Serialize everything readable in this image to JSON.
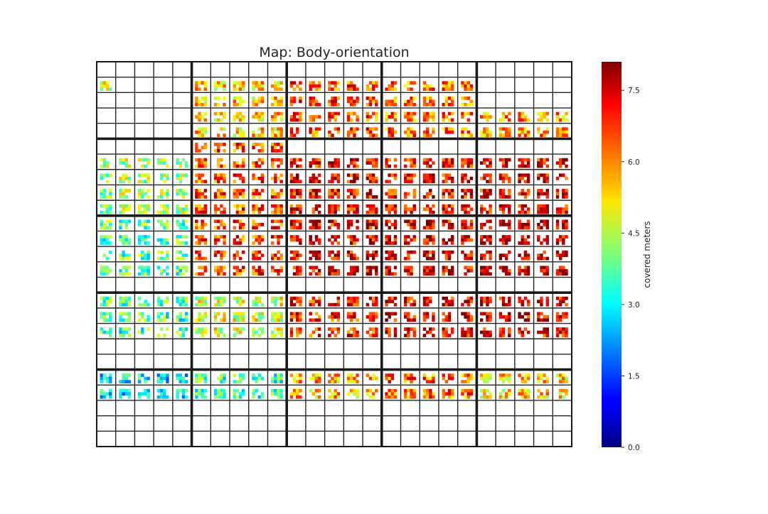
{
  "chart_data": {
    "type": "heatmap",
    "title": "Map: Body-orientation",
    "colorbar": {
      "label": "covered meters",
      "vmin": 0,
      "vmax": 8.1,
      "ticks": [
        0.0,
        1.5,
        3.0,
        4.5,
        6.0,
        7.5
      ],
      "tick_labels": [
        "0.0",
        "1.5",
        "3.0",
        "4.5",
        "6.0",
        "7.5"
      ],
      "colormap": "jet"
    },
    "grid": {
      "blocks_x": 5,
      "blocks_y": 5,
      "sub_x": 5,
      "sub_y": 5,
      "pixel_cols": 4,
      "pixel_rows": 3
    },
    "blocks": [
      [
        {
          "lvl": 4.6,
          "rows": [
            0,
            1,
            0,
            0,
            0
          ],
          "cols": [
            1,
            0,
            0,
            0,
            0
          ]
        },
        {
          "lvl": 5.4,
          "rows": [
            0,
            1,
            1,
            1,
            1
          ],
          "cols": [
            1,
            1,
            1,
            1,
            1
          ]
        },
        {
          "lvl": 6.5,
          "rows": [
            0,
            1,
            1,
            1,
            1
          ],
          "cols": [
            1,
            1,
            1,
            1,
            1
          ]
        },
        {
          "lvl": 6.2,
          "rows": [
            0,
            1,
            1,
            1,
            1
          ],
          "cols": [
            1,
            1,
            1,
            1,
            1
          ]
        },
        {
          "lvl": 5.8,
          "rows": [
            0,
            0,
            0,
            1,
            1
          ],
          "cols": [
            1,
            1,
            1,
            1,
            1
          ]
        }
      ],
      [
        {
          "lvl": 4.3,
          "rows": [
            0,
            1,
            1,
            1,
            1
          ],
          "cols": [
            1,
            1,
            1,
            1,
            1
          ]
        },
        {
          "lvl": 6.5,
          "rows": [
            1,
            1,
            1,
            1,
            1
          ],
          "cols": [
            1,
            1,
            1,
            1,
            1
          ]
        },
        {
          "lvl": 7.1,
          "rows": [
            0,
            1,
            1,
            1,
            1
          ],
          "cols": [
            1,
            1,
            1,
            1,
            1
          ]
        },
        {
          "lvl": 7.1,
          "rows": [
            0,
            1,
            1,
            1,
            1
          ],
          "cols": [
            1,
            1,
            1,
            1,
            1
          ]
        },
        {
          "lvl": 7.2,
          "rows": [
            0,
            1,
            1,
            1,
            1
          ],
          "cols": [
            1,
            1,
            1,
            1,
            1
          ]
        }
      ],
      [
        {
          "lvl": 3.8,
          "rows": [
            1,
            1,
            1,
            1,
            0
          ],
          "cols": [
            1,
            1,
            1,
            1,
            1
          ]
        },
        {
          "lvl": 6.6,
          "rows": [
            1,
            1,
            1,
            1,
            0
          ],
          "cols": [
            1,
            1,
            1,
            1,
            1
          ]
        },
        {
          "lvl": 7.3,
          "rows": [
            1,
            1,
            1,
            1,
            0
          ],
          "cols": [
            1,
            1,
            1,
            1,
            1
          ]
        },
        {
          "lvl": 7.4,
          "rows": [
            1,
            1,
            1,
            1,
            0
          ],
          "cols": [
            1,
            1,
            1,
            1,
            1
          ]
        },
        {
          "lvl": 7.6,
          "rows": [
            1,
            1,
            1,
            1,
            0
          ],
          "cols": [
            1,
            1,
            1,
            1,
            1
          ]
        }
      ],
      [
        {
          "lvl": 3.6,
          "rows": [
            1,
            1,
            1,
            0,
            0
          ],
          "cols": [
            1,
            1,
            1,
            1,
            1
          ]
        },
        {
          "lvl": 4.8,
          "rows": [
            1,
            1,
            1,
            0,
            0
          ],
          "cols": [
            1,
            1,
            1,
            1,
            1
          ]
        },
        {
          "lvl": 6.9,
          "rows": [
            1,
            1,
            1,
            0,
            0
          ],
          "cols": [
            1,
            1,
            1,
            1,
            1
          ]
        },
        {
          "lvl": 7.3,
          "rows": [
            1,
            1,
            1,
            0,
            0
          ],
          "cols": [
            1,
            1,
            1,
            1,
            1
          ]
        },
        {
          "lvl": 7.3,
          "rows": [
            1,
            1,
            1,
            0,
            0
          ],
          "cols": [
            1,
            1,
            1,
            1,
            1
          ]
        }
      ],
      [
        {
          "lvl": 2.8,
          "rows": [
            1,
            1,
            0,
            0,
            0
          ],
          "cols": [
            1,
            1,
            1,
            1,
            1
          ]
        },
        {
          "lvl": 3.6,
          "rows": [
            1,
            1,
            0,
            0,
            0
          ],
          "cols": [
            1,
            1,
            1,
            1,
            1
          ]
        },
        {
          "lvl": 5.6,
          "rows": [
            1,
            1,
            0,
            0,
            0
          ],
          "cols": [
            1,
            1,
            1,
            1,
            1
          ]
        },
        {
          "lvl": 6.3,
          "rows": [
            1,
            1,
            0,
            0,
            0
          ],
          "cols": [
            1,
            1,
            1,
            1,
            1
          ]
        },
        {
          "lvl": 5.3,
          "rows": [
            1,
            1,
            0,
            0,
            0
          ],
          "cols": [
            1,
            1,
            1,
            1,
            1
          ]
        }
      ]
    ]
  }
}
